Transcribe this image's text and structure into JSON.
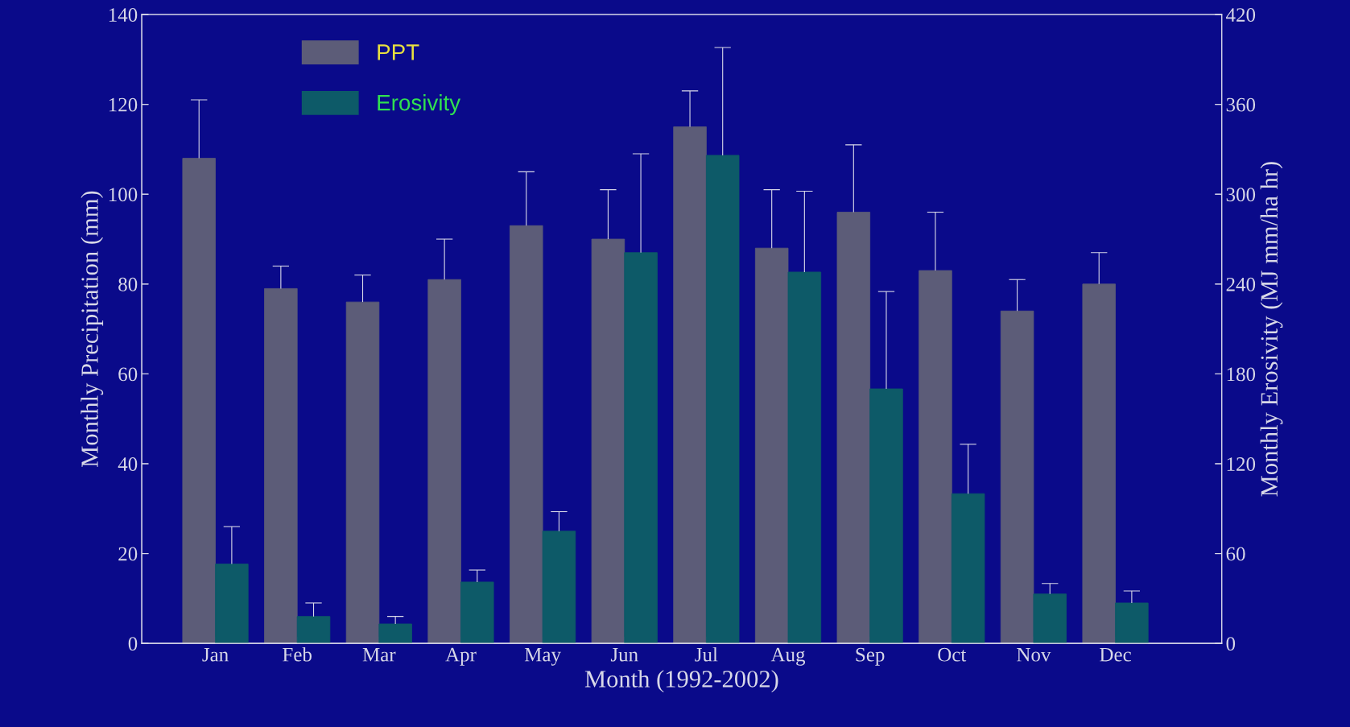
{
  "chart_data": {
    "type": "bar",
    "xlabel": "Month (1992-2002)",
    "ylabel": "Monthly Precipitation (mm)",
    "y2label": "Monthly Erosivity (MJ mm/ha hr)",
    "categories": [
      "Jan",
      "Feb",
      "Mar",
      "Apr",
      "May",
      "Jun",
      "Jul",
      "Aug",
      "Sep",
      "Oct",
      "Nov",
      "Dec"
    ],
    "series": [
      {
        "name": "PPT",
        "color": "#5c5c78",
        "values": [
          108,
          79,
          76,
          81,
          93,
          90,
          115,
          88,
          96,
          83,
          74,
          80
        ],
        "errors": [
          [
            108,
            121
          ],
          [
            79,
            84
          ],
          [
            76,
            82
          ],
          [
            81,
            90
          ],
          [
            93,
            105
          ],
          [
            90,
            101
          ],
          [
            115,
            123
          ],
          [
            88,
            101
          ],
          [
            96,
            111
          ],
          [
            83,
            96
          ],
          [
            74,
            81
          ],
          [
            80,
            87
          ]
        ]
      },
      {
        "name": "Erosivity",
        "axis": "y2",
        "color": "#0d5a68",
        "values": [
          53,
          18,
          13,
          41,
          75,
          261,
          326,
          248,
          170,
          100,
          33,
          27
        ],
        "errors": [
          [
            53,
            78
          ],
          [
            18,
            27
          ],
          [
            13,
            18
          ],
          [
            41,
            49
          ],
          [
            75,
            88
          ],
          [
            261,
            327
          ],
          [
            326,
            398
          ],
          [
            248,
            302
          ],
          [
            170,
            235
          ],
          [
            100,
            133
          ],
          [
            33,
            40
          ],
          [
            27,
            35
          ]
        ]
      }
    ],
    "ylim": [
      0,
      140
    ],
    "yticks": [
      0,
      20,
      40,
      60,
      80,
      100,
      120,
      140
    ],
    "y2lim": [
      0,
      420
    ],
    "y2ticks": [
      0,
      60,
      120,
      180,
      240,
      300,
      360,
      420
    ],
    "legend": "top left",
    "grid": false
  }
}
